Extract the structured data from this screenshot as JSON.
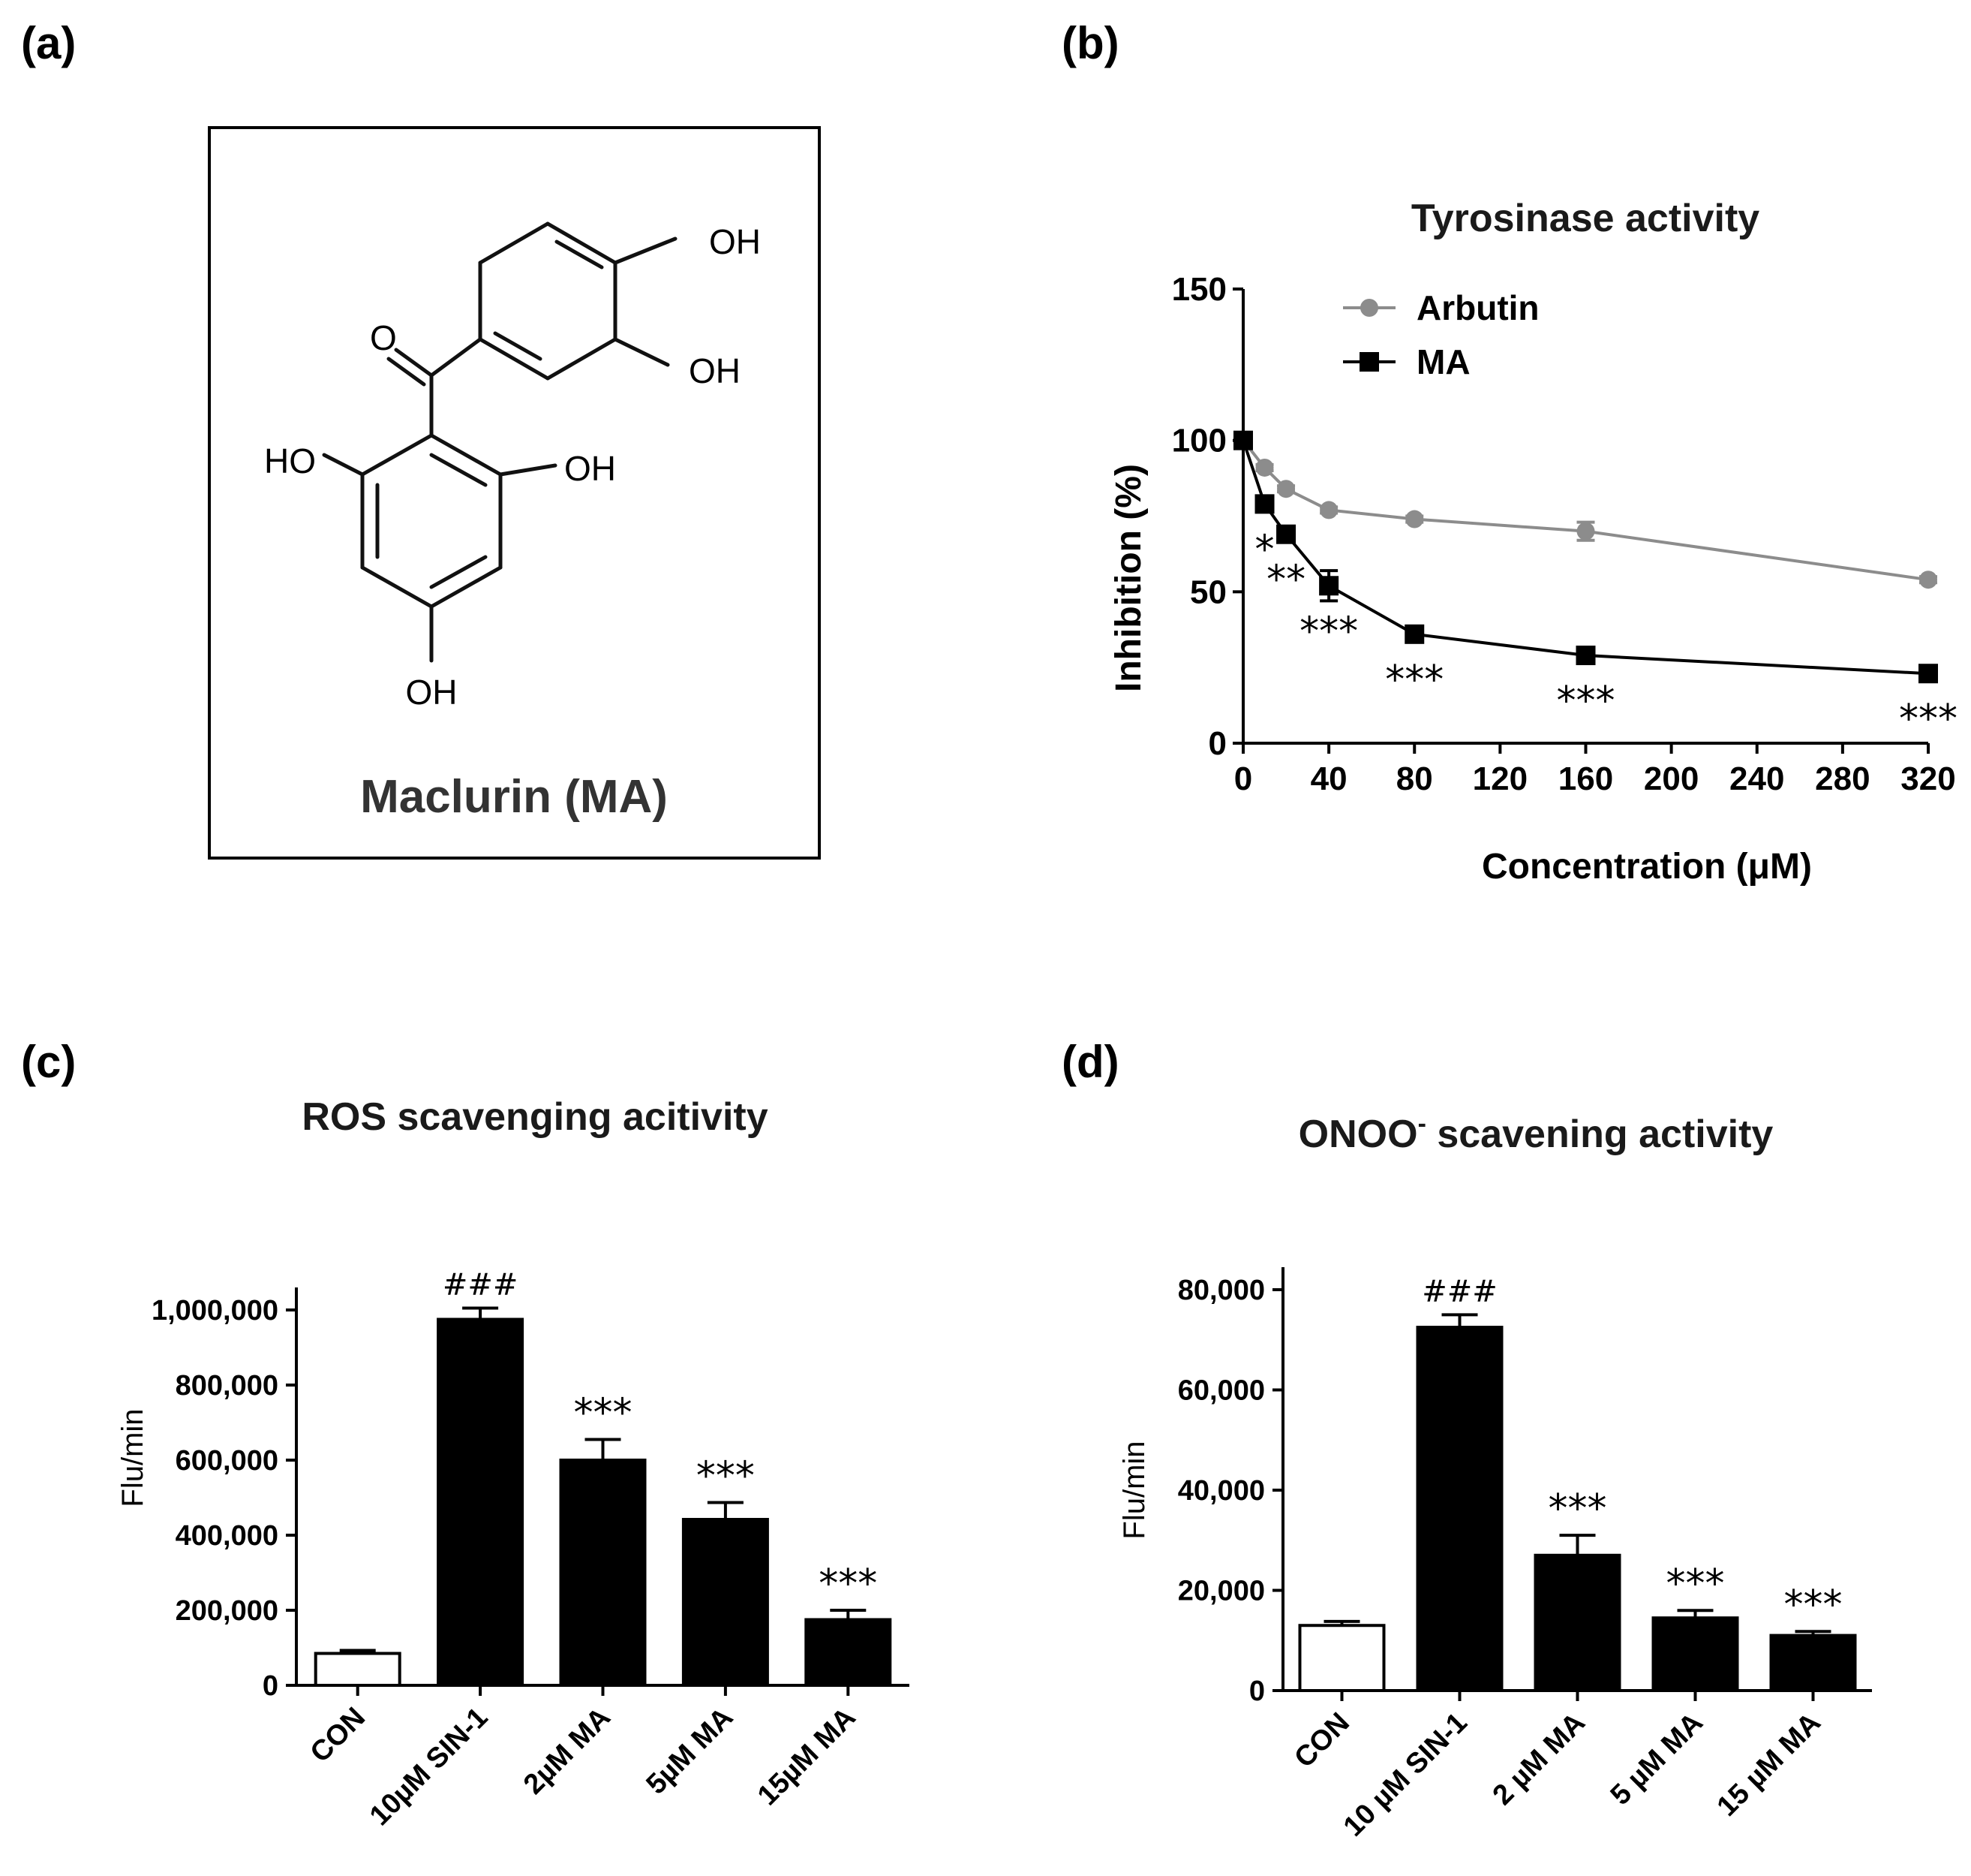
{
  "panels": {
    "a": "(a)",
    "b": "(b)",
    "c": "(c)",
    "d": "(d)"
  },
  "molecule": {
    "name": "Maclurin (MA)",
    "groups": {
      "oh1": "OH",
      "oh2": "OH",
      "oh3": "OH",
      "ho4": "HO",
      "oh5": "OH",
      "o": "O"
    }
  },
  "chart_data": [
    {
      "id": "b",
      "type": "line",
      "title": "Tyrosinase activity",
      "xlabel": "Concentration (μM)",
      "ylabel": "Inhibition (%)",
      "xlim": [
        0,
        320
      ],
      "ylim": [
        0,
        150
      ],
      "xticks": [
        0,
        40,
        80,
        120,
        160,
        200,
        240,
        280,
        320
      ],
      "yticks": [
        0,
        50,
        100,
        150
      ],
      "legend_position": "top-left",
      "series": [
        {
          "name": "Arbutin",
          "color": "#8c8c8c",
          "marker": "circle",
          "x": [
            0,
            10,
            20,
            40,
            80,
            160,
            320
          ],
          "y": [
            100,
            91,
            84,
            77,
            74,
            70,
            54
          ],
          "err": [
            0,
            1,
            1,
            1,
            1,
            3,
            1
          ],
          "annotations": [
            "",
            "",
            "",
            "",
            "",
            "",
            ""
          ]
        },
        {
          "name": "MA",
          "color": "#000000",
          "marker": "square",
          "x": [
            0,
            10,
            20,
            40,
            80,
            160,
            320
          ],
          "y": [
            100,
            79,
            69,
            52,
            36,
            29,
            23
          ],
          "err": [
            0,
            2,
            2,
            5,
            2,
            1,
            1
          ],
          "annotations": [
            "",
            "*",
            "**",
            "***",
            "***",
            "***",
            "***"
          ]
        }
      ]
    },
    {
      "id": "c",
      "type": "bar",
      "title": "ROS scavenging acitivity",
      "xlabel": "",
      "ylabel": "Flu/min",
      "ylim": [
        0,
        1000000
      ],
      "yticks": [
        0,
        200000,
        400000,
        600000,
        800000,
        1000000
      ],
      "ytick_labels": [
        "0",
        "200,000",
        "400,000",
        "600,000",
        "800,000",
        "1,000,000"
      ],
      "categories": [
        "CON",
        "10µM SIN-1",
        "2µM MA",
        "5µM MA",
        "15µM MA"
      ],
      "values": [
        85000,
        975000,
        600000,
        442000,
        175000
      ],
      "err": [
        8000,
        30000,
        55000,
        45000,
        25000
      ],
      "fills": [
        "white",
        "black",
        "black",
        "black",
        "black"
      ],
      "annotations": [
        "",
        "###",
        "***",
        "***",
        "***"
      ]
    },
    {
      "id": "d",
      "type": "bar",
      "title": "ONOO",
      "title_sup": "-",
      "title_rest": " scavening activity",
      "xlabel": "",
      "ylabel": "Flu/min",
      "ylim": [
        0,
        80000
      ],
      "yticks": [
        0,
        20000,
        40000,
        60000,
        80000
      ],
      "ytick_labels": [
        "0",
        "20,000",
        "40,000",
        "60,000",
        "80,000"
      ],
      "categories": [
        "CON",
        "10 µM SIN-1",
        "2 µM MA",
        "5 µM MA",
        "15 µM MA"
      ],
      "values": [
        13000,
        72500,
        27000,
        14500,
        11000
      ],
      "err": [
        800,
        2500,
        4000,
        1500,
        800
      ],
      "fills": [
        "white",
        "black",
        "black",
        "black",
        "black"
      ],
      "annotations": [
        "",
        "###",
        "***",
        "***",
        "***"
      ]
    }
  ]
}
